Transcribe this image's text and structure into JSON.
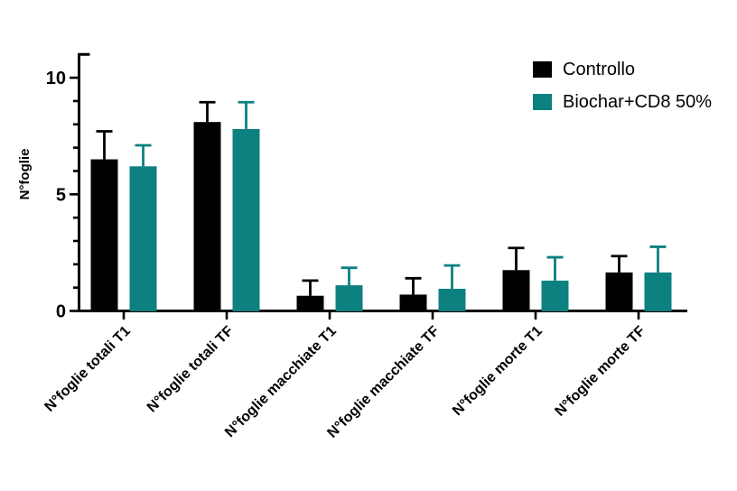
{
  "chart_data": {
    "type": "bar",
    "title": "",
    "ylabel": "N°foglie",
    "xlabel": "",
    "categories": [
      "N°foglie totali T1",
      "N°foglie totali TF",
      "N°foglie macchiate T1",
      "N°foglie macchiate TF",
      "N°foglie morte T1",
      "N°foglie morte TF"
    ],
    "series": [
      {
        "name": "Controllo",
        "color": "#000000",
        "values": [
          6.5,
          8.1,
          0.65,
          0.7,
          1.75,
          1.65
        ],
        "errors_up": [
          1.2,
          0.85,
          0.65,
          0.7,
          0.95,
          0.7
        ]
      },
      {
        "name": "Biochar+CD8 50%",
        "color": "#0d8080",
        "values": [
          6.2,
          7.8,
          1.1,
          0.95,
          1.3,
          1.65
        ],
        "errors_up": [
          0.9,
          1.15,
          0.75,
          1.0,
          1.0,
          1.1
        ]
      }
    ],
    "yticks": [
      0,
      5,
      10
    ],
    "minor_ticks": [
      1,
      2,
      3,
      4,
      6,
      7,
      8,
      9
    ],
    "ylim": [
      0,
      11.0
    ],
    "grid": false,
    "error_bar_style": "sd-upper-with-cap",
    "legend_position": "top-right",
    "axis_color": "#000000",
    "background_color": "#ffffff"
  }
}
